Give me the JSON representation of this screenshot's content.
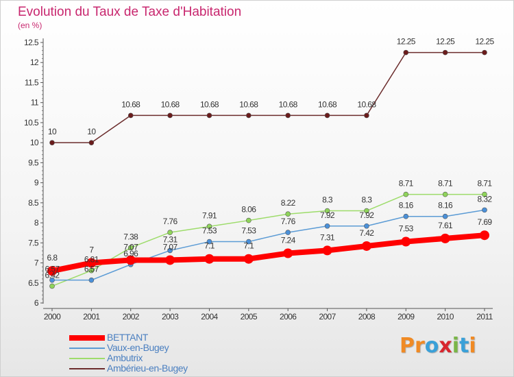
{
  "title": "Evolution du Taux de Taxe d'Habitation",
  "subtitle": "(en %)",
  "logo": {
    "text": "Proxiti",
    "letters": [
      {
        "ch": "P",
        "color": "#f08a24"
      },
      {
        "ch": "r",
        "color": "#f08a24"
      },
      {
        "ch": "o",
        "color": "#3aa0d8"
      },
      {
        "ch": "x",
        "color": "#d8262e"
      },
      {
        "ch": "i",
        "color": "#7ab648"
      },
      {
        "ch": "t",
        "color": "#3aa0d8"
      },
      {
        "ch": "i",
        "color": "#f08a24"
      }
    ]
  },
  "chart_data": {
    "type": "line",
    "title": "Evolution du Taux de Taxe d'Habitation",
    "ylabel": "(en %)",
    "xlabel": "",
    "x": [
      "2000",
      "2001",
      "2002",
      "2003",
      "2004",
      "2005",
      "2006",
      "2007",
      "2008",
      "2009",
      "2010",
      "2011"
    ],
    "ylim": [
      6,
      12.5
    ],
    "yticks": [
      "6",
      "6.5",
      "7",
      "7.5",
      "8",
      "8.5",
      "9",
      "9.5",
      "10",
      "10.5",
      "11",
      "11.5",
      "12",
      "12.5"
    ],
    "grid": false,
    "legend_position": "bottom-left",
    "series": [
      {
        "name": "BETTANT",
        "color": "#ff0000",
        "values": [
          6.8,
          7,
          7.07,
          7.07,
          7.1,
          7.1,
          7.24,
          7.31,
          7.42,
          7.53,
          7.61,
          7.69
        ],
        "labels": [
          "6.8",
          "7",
          "7.07",
          "7.07",
          "7.1",
          "7.1",
          "7.24",
          "7.31",
          "7.42",
          "7.53",
          "7.61",
          "7.69"
        ]
      },
      {
        "name": "Vaux-en-Bugey",
        "color": "#5b9bd5",
        "values": [
          6.57,
          6.57,
          6.96,
          7.31,
          7.53,
          7.53,
          7.76,
          7.92,
          7.92,
          8.16,
          8.16,
          8.32
        ],
        "labels": [
          "6.57",
          "6.57",
          "6.96",
          "7.31",
          "7.53",
          "7.53",
          "7.76",
          "7.92",
          "7.92",
          "8.16",
          "8.16",
          "8.32"
        ]
      },
      {
        "name": "Ambutrix",
        "color": "#9ddc6a",
        "values": [
          6.42,
          6.81,
          7.38,
          7.76,
          7.91,
          8.06,
          8.22,
          8.3,
          8.3,
          8.71,
          8.71,
          8.71
        ],
        "labels": [
          "6.42",
          "6.81",
          "7.38",
          "7.76",
          "7.91",
          "8.06",
          "8.22",
          "8.3",
          "8.3",
          "8.71",
          "8.71",
          "8.71"
        ]
      },
      {
        "name": "Ambérieu-en-Bugey",
        "color": "#6b2c2c",
        "values": [
          10,
          10,
          10.68,
          10.68,
          10.68,
          10.68,
          10.68,
          10.68,
          10.68,
          12.25,
          12.25,
          12.25
        ],
        "labels": [
          "10",
          "10",
          "10.68",
          "10.68",
          "10.68",
          "10.68",
          "10.68",
          "10.68",
          "10.68",
          "12.25",
          "12.25",
          "12.25"
        ]
      }
    ]
  }
}
